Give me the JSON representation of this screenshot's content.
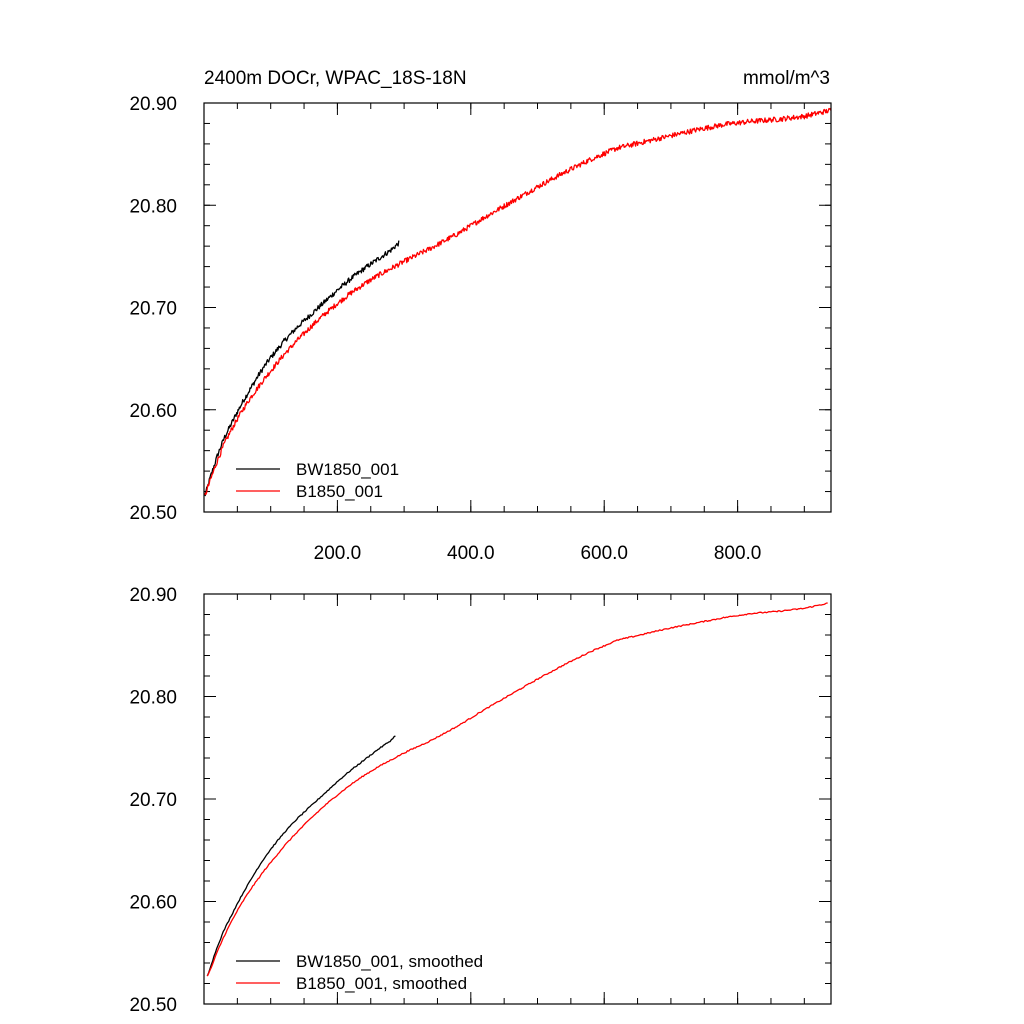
{
  "chart_data": [
    {
      "type": "line",
      "title": "2400m DOCr, WPAC_18S-18N",
      "units": "mmol/m^3",
      "xlim": [
        0,
        940
      ],
      "ylim": [
        20.5,
        20.9
      ],
      "xticks": [
        200,
        400,
        600,
        800
      ],
      "xtick_labels": [
        "200.0",
        "400.0",
        "600.0",
        "800.0"
      ],
      "yticks": [
        20.5,
        20.6,
        20.7,
        20.8,
        20.9
      ],
      "ytick_labels": [
        "20.50",
        "20.60",
        "20.70",
        "20.80",
        "20.90"
      ],
      "legend_position": "bottom-left",
      "grid": false,
      "series": [
        {
          "name": "BW1850_001",
          "color": "#000000",
          "noisy": true,
          "x": [
            1,
            10,
            20,
            30,
            40,
            50,
            60,
            70,
            80,
            90,
            100,
            120,
            140,
            160,
            180,
            200,
            220,
            240,
            260,
            280,
            292
          ],
          "y": [
            20.515,
            20.535,
            20.555,
            20.572,
            20.585,
            20.598,
            20.61,
            20.621,
            20.632,
            20.642,
            20.651,
            20.667,
            20.681,
            20.693,
            20.705,
            20.717,
            20.728,
            20.738,
            20.747,
            20.756,
            20.763
          ]
        },
        {
          "name": "B1850_001",
          "color": "#ff0000",
          "noisy": true,
          "x": [
            1,
            10,
            20,
            30,
            40,
            50,
            60,
            70,
            80,
            90,
            100,
            120,
            140,
            160,
            180,
            200,
            220,
            240,
            260,
            280,
            300,
            340,
            380,
            420,
            460,
            500,
            540,
            580,
            620,
            660,
            700,
            740,
            780,
            820,
            860,
            900,
            940
          ],
          "y": [
            20.515,
            20.532,
            20.55,
            20.566,
            20.579,
            20.591,
            20.602,
            20.612,
            20.621,
            20.63,
            20.638,
            20.654,
            20.668,
            20.681,
            20.693,
            20.704,
            20.714,
            20.723,
            20.731,
            20.738,
            20.745,
            20.758,
            20.772,
            20.788,
            20.803,
            20.818,
            20.832,
            20.845,
            20.856,
            20.862,
            20.868,
            20.874,
            20.879,
            20.882,
            20.884,
            20.887,
            20.893
          ]
        }
      ]
    },
    {
      "type": "line",
      "xlim": [
        0,
        940
      ],
      "ylim": [
        20.5,
        20.9
      ],
      "xticks": [
        200,
        400,
        600,
        800
      ],
      "yticks": [
        20.5,
        20.6,
        20.7,
        20.8,
        20.9
      ],
      "ytick_labels": [
        "20.50",
        "20.60",
        "20.70",
        "20.80",
        "20.90"
      ],
      "legend_position": "bottom-left",
      "grid": false,
      "series": [
        {
          "name": "BW1850_001, smoothed",
          "color": "#000000",
          "noisy": false,
          "x": [
            5,
            10,
            20,
            30,
            40,
            50,
            60,
            70,
            80,
            90,
            100,
            120,
            140,
            160,
            180,
            200,
            220,
            240,
            260,
            280,
            287
          ],
          "y": [
            20.527,
            20.537,
            20.556,
            20.572,
            20.585,
            20.598,
            20.61,
            20.621,
            20.632,
            20.642,
            20.651,
            20.667,
            20.681,
            20.693,
            20.705,
            20.717,
            20.728,
            20.738,
            20.748,
            20.757,
            20.762
          ]
        },
        {
          "name": "B1850_001, smoothed",
          "color": "#ff0000",
          "noisy": false,
          "x": [
            5,
            10,
            20,
            30,
            40,
            50,
            60,
            70,
            80,
            90,
            100,
            120,
            140,
            160,
            180,
            200,
            220,
            240,
            260,
            280,
            300,
            340,
            380,
            420,
            460,
            500,
            540,
            580,
            620,
            660,
            700,
            740,
            780,
            820,
            860,
            900,
            935
          ],
          "y": [
            20.527,
            20.534,
            20.551,
            20.566,
            20.579,
            20.591,
            20.602,
            20.612,
            20.621,
            20.63,
            20.638,
            20.654,
            20.668,
            20.681,
            20.693,
            20.704,
            20.714,
            20.723,
            20.731,
            20.738,
            20.745,
            20.757,
            20.771,
            20.787,
            20.802,
            20.817,
            20.831,
            20.844,
            20.855,
            20.861,
            20.867,
            20.872,
            20.877,
            20.881,
            20.883,
            20.886,
            20.891
          ]
        }
      ]
    }
  ]
}
